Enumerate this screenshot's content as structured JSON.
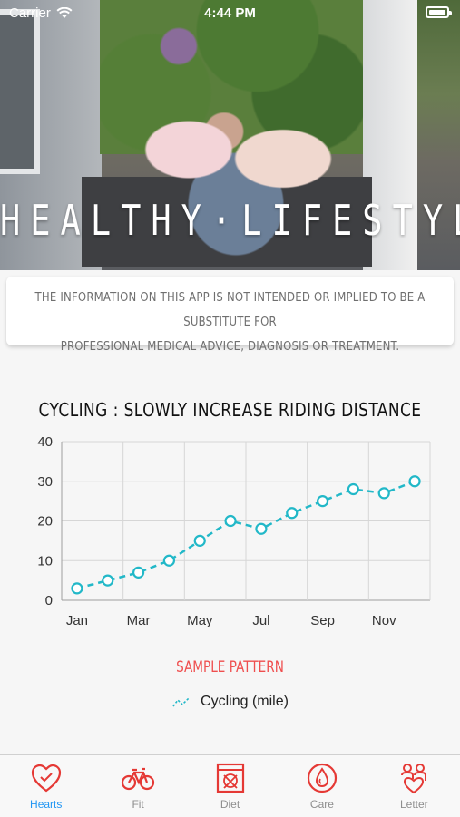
{
  "status_bar": {
    "carrier": "Carrier",
    "time": "4:44 PM"
  },
  "hero": {
    "title": "HEALTHY·LIFESTYLE"
  },
  "disclaimer": {
    "line1": "THE INFORMATION ON THIS APP IS NOT INTENDED OR IMPLIED TO BE A SUBSTITUTE FOR",
    "line2": "PROFESSIONAL MEDICAL ADVICE, DIAGNOSIS OR TREATMENT."
  },
  "chart_data": {
    "type": "line",
    "title": "CYCLING : SLOWLY INCREASE RIDING DISTANCE",
    "x_ticks": [
      "Jan",
      "Mar",
      "May",
      "Jul",
      "Sep",
      "Nov"
    ],
    "y_ticks": [
      "0",
      "10",
      "20",
      "30",
      "40"
    ],
    "ylim": [
      0,
      40
    ],
    "xlim": [
      0,
      12
    ],
    "grid": true,
    "series": [
      {
        "name": "Cycling (mile)",
        "color": "#22b8c8",
        "x": [
          0.5,
          1.5,
          2.5,
          3.5,
          4.5,
          5.5,
          6.5,
          7.5,
          8.5,
          9.5,
          10.5,
          11.5
        ],
        "y": [
          3,
          5,
          7,
          10,
          15,
          20,
          18,
          22,
          25,
          28,
          27,
          30
        ]
      }
    ]
  },
  "sample_label": "SAMPLE PATTERN",
  "legend": {
    "label": "Cycling (mile)"
  },
  "tabs": [
    {
      "label": "Hearts",
      "icon": "heart-icon",
      "active": true
    },
    {
      "label": "Fit",
      "icon": "bicycle-icon",
      "active": false
    },
    {
      "label": "Diet",
      "icon": "diet-icon",
      "active": false
    },
    {
      "label": "Care",
      "icon": "care-icon",
      "active": false
    },
    {
      "label": "Letter",
      "icon": "letter-icon",
      "active": false
    }
  ]
}
